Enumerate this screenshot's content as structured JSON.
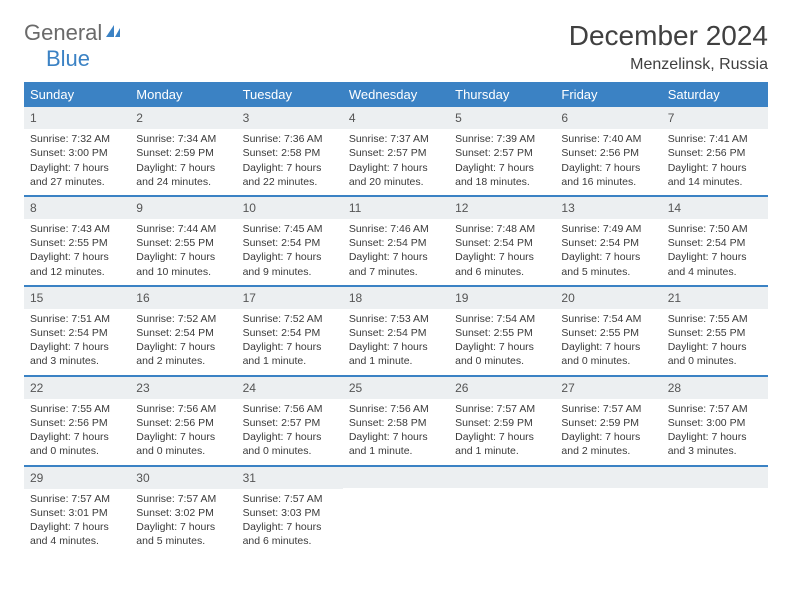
{
  "logo": {
    "text_general": "General",
    "text_blue": "Blue"
  },
  "title": "December 2024",
  "subtitle": "Menzelinsk, Russia",
  "colors": {
    "accent": "#3b82c4",
    "daynum_bg": "#eceff1",
    "text": "#3a3a3a",
    "background": "#ffffff"
  },
  "dow": [
    "Sunday",
    "Monday",
    "Tuesday",
    "Wednesday",
    "Thursday",
    "Friday",
    "Saturday"
  ],
  "days": [
    {
      "n": "1",
      "sunrise": "7:32 AM",
      "sunset": "3:00 PM",
      "daylight": "7 hours and 27 minutes."
    },
    {
      "n": "2",
      "sunrise": "7:34 AM",
      "sunset": "2:59 PM",
      "daylight": "7 hours and 24 minutes."
    },
    {
      "n": "3",
      "sunrise": "7:36 AM",
      "sunset": "2:58 PM",
      "daylight": "7 hours and 22 minutes."
    },
    {
      "n": "4",
      "sunrise": "7:37 AM",
      "sunset": "2:57 PM",
      "daylight": "7 hours and 20 minutes."
    },
    {
      "n": "5",
      "sunrise": "7:39 AM",
      "sunset": "2:57 PM",
      "daylight": "7 hours and 18 minutes."
    },
    {
      "n": "6",
      "sunrise": "7:40 AM",
      "sunset": "2:56 PM",
      "daylight": "7 hours and 16 minutes."
    },
    {
      "n": "7",
      "sunrise": "7:41 AM",
      "sunset": "2:56 PM",
      "daylight": "7 hours and 14 minutes."
    },
    {
      "n": "8",
      "sunrise": "7:43 AM",
      "sunset": "2:55 PM",
      "daylight": "7 hours and 12 minutes."
    },
    {
      "n": "9",
      "sunrise": "7:44 AM",
      "sunset": "2:55 PM",
      "daylight": "7 hours and 10 minutes."
    },
    {
      "n": "10",
      "sunrise": "7:45 AM",
      "sunset": "2:54 PM",
      "daylight": "7 hours and 9 minutes."
    },
    {
      "n": "11",
      "sunrise": "7:46 AM",
      "sunset": "2:54 PM",
      "daylight": "7 hours and 7 minutes."
    },
    {
      "n": "12",
      "sunrise": "7:48 AM",
      "sunset": "2:54 PM",
      "daylight": "7 hours and 6 minutes."
    },
    {
      "n": "13",
      "sunrise": "7:49 AM",
      "sunset": "2:54 PM",
      "daylight": "7 hours and 5 minutes."
    },
    {
      "n": "14",
      "sunrise": "7:50 AM",
      "sunset": "2:54 PM",
      "daylight": "7 hours and 4 minutes."
    },
    {
      "n": "15",
      "sunrise": "7:51 AM",
      "sunset": "2:54 PM",
      "daylight": "7 hours and 3 minutes."
    },
    {
      "n": "16",
      "sunrise": "7:52 AM",
      "sunset": "2:54 PM",
      "daylight": "7 hours and 2 minutes."
    },
    {
      "n": "17",
      "sunrise": "7:52 AM",
      "sunset": "2:54 PM",
      "daylight": "7 hours and 1 minute."
    },
    {
      "n": "18",
      "sunrise": "7:53 AM",
      "sunset": "2:54 PM",
      "daylight": "7 hours and 1 minute."
    },
    {
      "n": "19",
      "sunrise": "7:54 AM",
      "sunset": "2:55 PM",
      "daylight": "7 hours and 0 minutes."
    },
    {
      "n": "20",
      "sunrise": "7:54 AM",
      "sunset": "2:55 PM",
      "daylight": "7 hours and 0 minutes."
    },
    {
      "n": "21",
      "sunrise": "7:55 AM",
      "sunset": "2:55 PM",
      "daylight": "7 hours and 0 minutes."
    },
    {
      "n": "22",
      "sunrise": "7:55 AM",
      "sunset": "2:56 PM",
      "daylight": "7 hours and 0 minutes."
    },
    {
      "n": "23",
      "sunrise": "7:56 AM",
      "sunset": "2:56 PM",
      "daylight": "7 hours and 0 minutes."
    },
    {
      "n": "24",
      "sunrise": "7:56 AM",
      "sunset": "2:57 PM",
      "daylight": "7 hours and 0 minutes."
    },
    {
      "n": "25",
      "sunrise": "7:56 AM",
      "sunset": "2:58 PM",
      "daylight": "7 hours and 1 minute."
    },
    {
      "n": "26",
      "sunrise": "7:57 AM",
      "sunset": "2:59 PM",
      "daylight": "7 hours and 1 minute."
    },
    {
      "n": "27",
      "sunrise": "7:57 AM",
      "sunset": "2:59 PM",
      "daylight": "7 hours and 2 minutes."
    },
    {
      "n": "28",
      "sunrise": "7:57 AM",
      "sunset": "3:00 PM",
      "daylight": "7 hours and 3 minutes."
    },
    {
      "n": "29",
      "sunrise": "7:57 AM",
      "sunset": "3:01 PM",
      "daylight": "7 hours and 4 minutes."
    },
    {
      "n": "30",
      "sunrise": "7:57 AM",
      "sunset": "3:02 PM",
      "daylight": "7 hours and 5 minutes."
    },
    {
      "n": "31",
      "sunrise": "7:57 AM",
      "sunset": "3:03 PM",
      "daylight": "7 hours and 6 minutes."
    }
  ],
  "labels": {
    "sunrise": "Sunrise:",
    "sunset": "Sunset:",
    "daylight": "Daylight:"
  }
}
